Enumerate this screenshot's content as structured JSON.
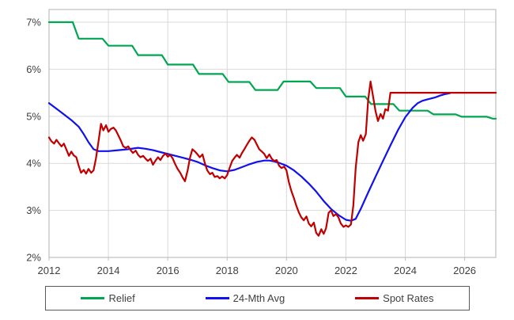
{
  "chart_data": {
    "type": "line",
    "title": "",
    "xlabel": "",
    "ylabel": "",
    "grid": true,
    "grid_color": "#D9D9D9",
    "plot_border_color": "#BFBFBF",
    "axis_text_color": "#404040",
    "legend": {
      "position": "bottom",
      "border_color": "#595959"
    },
    "x_axis": {
      "min": 2012,
      "max": 2027.05,
      "tick_years": [
        2012,
        2014,
        2016,
        2018,
        2020,
        2022,
        2024,
        2026
      ],
      "tick_labels": [
        "2012",
        "2014",
        "2016",
        "2018",
        "2020",
        "2022",
        "2024",
        "2026"
      ]
    },
    "y_axis": {
      "min": 2,
      "max": 7.27,
      "tick_values": [
        2,
        3,
        4,
        5,
        6,
        7
      ],
      "tick_labels": [
        "2%",
        "3%",
        "4%",
        "5%",
        "6%",
        "7%"
      ]
    },
    "series": [
      {
        "name": "Relief",
        "color": "#00A650",
        "shape": "step",
        "points": [
          [
            2012.0,
            7.0
          ],
          [
            2012.8,
            7.0
          ],
          [
            2013.0,
            6.65
          ],
          [
            2013.8,
            6.65
          ],
          [
            2014.0,
            6.5
          ],
          [
            2014.8,
            6.5
          ],
          [
            2015.0,
            6.3
          ],
          [
            2015.8,
            6.3
          ],
          [
            2016.0,
            6.1
          ],
          [
            2016.85,
            6.1
          ],
          [
            2017.05,
            5.9
          ],
          [
            2017.85,
            5.9
          ],
          [
            2018.05,
            5.73
          ],
          [
            2018.75,
            5.73
          ],
          [
            2018.95,
            5.56
          ],
          [
            2019.7,
            5.56
          ],
          [
            2019.9,
            5.74
          ],
          [
            2020.8,
            5.74
          ],
          [
            2021.0,
            5.6
          ],
          [
            2021.8,
            5.6
          ],
          [
            2022.0,
            5.42
          ],
          [
            2022.65,
            5.42
          ],
          [
            2022.85,
            5.26
          ],
          [
            2023.6,
            5.26
          ],
          [
            2023.8,
            5.12
          ],
          [
            2024.75,
            5.12
          ],
          [
            2024.95,
            5.04
          ],
          [
            2025.7,
            5.04
          ],
          [
            2025.9,
            4.99
          ],
          [
            2026.75,
            4.99
          ],
          [
            2026.95,
            4.95
          ],
          [
            2027.05,
            4.95
          ]
        ]
      },
      {
        "name": "24-Mth Avg",
        "color": "#1010F0",
        "shape": "smooth",
        "points": [
          [
            2012.0,
            5.28
          ],
          [
            2012.25,
            5.16
          ],
          [
            2012.5,
            5.04
          ],
          [
            2012.75,
            4.92
          ],
          [
            2013.0,
            4.78
          ],
          [
            2013.17,
            4.62
          ],
          [
            2013.33,
            4.45
          ],
          [
            2013.5,
            4.3
          ],
          [
            2013.67,
            4.26
          ],
          [
            2014.0,
            4.26
          ],
          [
            2014.33,
            4.28
          ],
          [
            2014.67,
            4.3
          ],
          [
            2015.0,
            4.33
          ],
          [
            2015.25,
            4.31
          ],
          [
            2015.5,
            4.28
          ],
          [
            2015.75,
            4.24
          ],
          [
            2016.0,
            4.2
          ],
          [
            2016.25,
            4.16
          ],
          [
            2016.5,
            4.12
          ],
          [
            2016.75,
            4.08
          ],
          [
            2017.0,
            4.03
          ],
          [
            2017.25,
            3.96
          ],
          [
            2017.5,
            3.9
          ],
          [
            2017.75,
            3.85
          ],
          [
            2018.0,
            3.83
          ],
          [
            2018.25,
            3.86
          ],
          [
            2018.5,
            3.92
          ],
          [
            2018.75,
            3.98
          ],
          [
            2019.0,
            4.03
          ],
          [
            2019.25,
            4.06
          ],
          [
            2019.42,
            4.06
          ],
          [
            2019.58,
            4.04
          ],
          [
            2019.75,
            4.01
          ],
          [
            2020.0,
            3.95
          ],
          [
            2020.25,
            3.85
          ],
          [
            2020.5,
            3.72
          ],
          [
            2020.75,
            3.57
          ],
          [
            2021.0,
            3.4
          ],
          [
            2021.25,
            3.2
          ],
          [
            2021.5,
            3.03
          ],
          [
            2021.75,
            2.9
          ],
          [
            2022.0,
            2.8
          ],
          [
            2022.17,
            2.78
          ],
          [
            2022.33,
            2.82
          ],
          [
            2022.5,
            3.03
          ],
          [
            2022.75,
            3.38
          ],
          [
            2023.0,
            3.72
          ],
          [
            2023.25,
            4.05
          ],
          [
            2023.5,
            4.38
          ],
          [
            2023.75,
            4.7
          ],
          [
            2024.0,
            4.98
          ],
          [
            2024.25,
            5.18
          ],
          [
            2024.42,
            5.28
          ],
          [
            2024.58,
            5.33
          ],
          [
            2024.75,
            5.36
          ],
          [
            2025.0,
            5.4
          ],
          [
            2025.17,
            5.44
          ],
          [
            2025.33,
            5.47
          ],
          [
            2025.5,
            5.49
          ]
        ]
      },
      {
        "name": "Spot Rates",
        "color": "#C00000",
        "shape": "jagged",
        "points": [
          [
            2012.0,
            4.55
          ],
          [
            2012.08,
            4.47
          ],
          [
            2012.17,
            4.42
          ],
          [
            2012.25,
            4.5
          ],
          [
            2012.33,
            4.43
          ],
          [
            2012.42,
            4.36
          ],
          [
            2012.5,
            4.42
          ],
          [
            2012.58,
            4.3
          ],
          [
            2012.67,
            4.16
          ],
          [
            2012.75,
            4.25
          ],
          [
            2012.83,
            4.17
          ],
          [
            2012.92,
            4.13
          ],
          [
            2013.0,
            3.95
          ],
          [
            2013.08,
            3.8
          ],
          [
            2013.17,
            3.86
          ],
          [
            2013.25,
            3.78
          ],
          [
            2013.33,
            3.88
          ],
          [
            2013.42,
            3.8
          ],
          [
            2013.5,
            3.85
          ],
          [
            2013.58,
            4.1
          ],
          [
            2013.67,
            4.48
          ],
          [
            2013.75,
            4.84
          ],
          [
            2013.83,
            4.7
          ],
          [
            2013.92,
            4.81
          ],
          [
            2014.0,
            4.67
          ],
          [
            2014.08,
            4.73
          ],
          [
            2014.17,
            4.76
          ],
          [
            2014.25,
            4.7
          ],
          [
            2014.33,
            4.6
          ],
          [
            2014.42,
            4.48
          ],
          [
            2014.5,
            4.36
          ],
          [
            2014.58,
            4.33
          ],
          [
            2014.67,
            4.36
          ],
          [
            2014.75,
            4.28
          ],
          [
            2014.83,
            4.22
          ],
          [
            2014.92,
            4.27
          ],
          [
            2015.0,
            4.18
          ],
          [
            2015.08,
            4.13
          ],
          [
            2015.17,
            4.16
          ],
          [
            2015.25,
            4.1
          ],
          [
            2015.33,
            4.05
          ],
          [
            2015.42,
            4.1
          ],
          [
            2015.5,
            3.97
          ],
          [
            2015.58,
            4.05
          ],
          [
            2015.67,
            4.13
          ],
          [
            2015.75,
            4.07
          ],
          [
            2015.83,
            4.15
          ],
          [
            2015.92,
            4.21
          ],
          [
            2016.0,
            4.14
          ],
          [
            2016.08,
            4.18
          ],
          [
            2016.17,
            4.1
          ],
          [
            2016.25,
            3.98
          ],
          [
            2016.33,
            3.88
          ],
          [
            2016.42,
            3.8
          ],
          [
            2016.5,
            3.7
          ],
          [
            2016.58,
            3.62
          ],
          [
            2016.67,
            3.85
          ],
          [
            2016.75,
            4.12
          ],
          [
            2016.83,
            4.3
          ],
          [
            2016.92,
            4.25
          ],
          [
            2017.0,
            4.19
          ],
          [
            2017.08,
            4.13
          ],
          [
            2017.17,
            4.19
          ],
          [
            2017.25,
            4.0
          ],
          [
            2017.33,
            3.85
          ],
          [
            2017.42,
            3.77
          ],
          [
            2017.5,
            3.8
          ],
          [
            2017.58,
            3.71
          ],
          [
            2017.67,
            3.73
          ],
          [
            2017.75,
            3.68
          ],
          [
            2017.83,
            3.72
          ],
          [
            2017.92,
            3.68
          ],
          [
            2018.0,
            3.75
          ],
          [
            2018.08,
            3.9
          ],
          [
            2018.17,
            4.05
          ],
          [
            2018.25,
            4.12
          ],
          [
            2018.33,
            4.18
          ],
          [
            2018.42,
            4.12
          ],
          [
            2018.5,
            4.22
          ],
          [
            2018.58,
            4.3
          ],
          [
            2018.67,
            4.4
          ],
          [
            2018.75,
            4.48
          ],
          [
            2018.83,
            4.55
          ],
          [
            2018.92,
            4.5
          ],
          [
            2019.0,
            4.4
          ],
          [
            2019.08,
            4.3
          ],
          [
            2019.17,
            4.25
          ],
          [
            2019.25,
            4.2
          ],
          [
            2019.33,
            4.11
          ],
          [
            2019.42,
            4.19
          ],
          [
            2019.5,
            4.1
          ],
          [
            2019.58,
            4.05
          ],
          [
            2019.67,
            4.07
          ],
          [
            2019.75,
            3.95
          ],
          [
            2019.83,
            3.9
          ],
          [
            2019.92,
            3.93
          ],
          [
            2020.0,
            3.85
          ],
          [
            2020.08,
            3.6
          ],
          [
            2020.17,
            3.4
          ],
          [
            2020.25,
            3.26
          ],
          [
            2020.33,
            3.1
          ],
          [
            2020.42,
            2.95
          ],
          [
            2020.5,
            2.85
          ],
          [
            2020.58,
            2.79
          ],
          [
            2020.67,
            2.87
          ],
          [
            2020.75,
            2.72
          ],
          [
            2020.83,
            2.66
          ],
          [
            2020.92,
            2.74
          ],
          [
            2021.0,
            2.52
          ],
          [
            2021.08,
            2.46
          ],
          [
            2021.17,
            2.6
          ],
          [
            2021.25,
            2.5
          ],
          [
            2021.33,
            2.62
          ],
          [
            2021.42,
            2.95
          ],
          [
            2021.5,
            3.0
          ],
          [
            2021.58,
            2.88
          ],
          [
            2021.67,
            2.92
          ],
          [
            2021.75,
            2.85
          ],
          [
            2021.83,
            2.72
          ],
          [
            2021.92,
            2.65
          ],
          [
            2022.0,
            2.68
          ],
          [
            2022.08,
            2.65
          ],
          [
            2022.17,
            2.7
          ],
          [
            2022.25,
            3.1
          ],
          [
            2022.33,
            3.9
          ],
          [
            2022.42,
            4.45
          ],
          [
            2022.5,
            4.6
          ],
          [
            2022.58,
            4.48
          ],
          [
            2022.67,
            4.62
          ],
          [
            2022.75,
            5.35
          ],
          [
            2022.83,
            5.74
          ],
          [
            2022.92,
            5.4
          ],
          [
            2023.0,
            5.1
          ],
          [
            2023.08,
            4.9
          ],
          [
            2023.17,
            5.05
          ],
          [
            2023.25,
            4.95
          ],
          [
            2023.33,
            5.15
          ],
          [
            2023.42,
            5.12
          ],
          [
            2023.5,
            5.5
          ],
          [
            2027.05,
            5.5
          ]
        ]
      }
    ]
  }
}
